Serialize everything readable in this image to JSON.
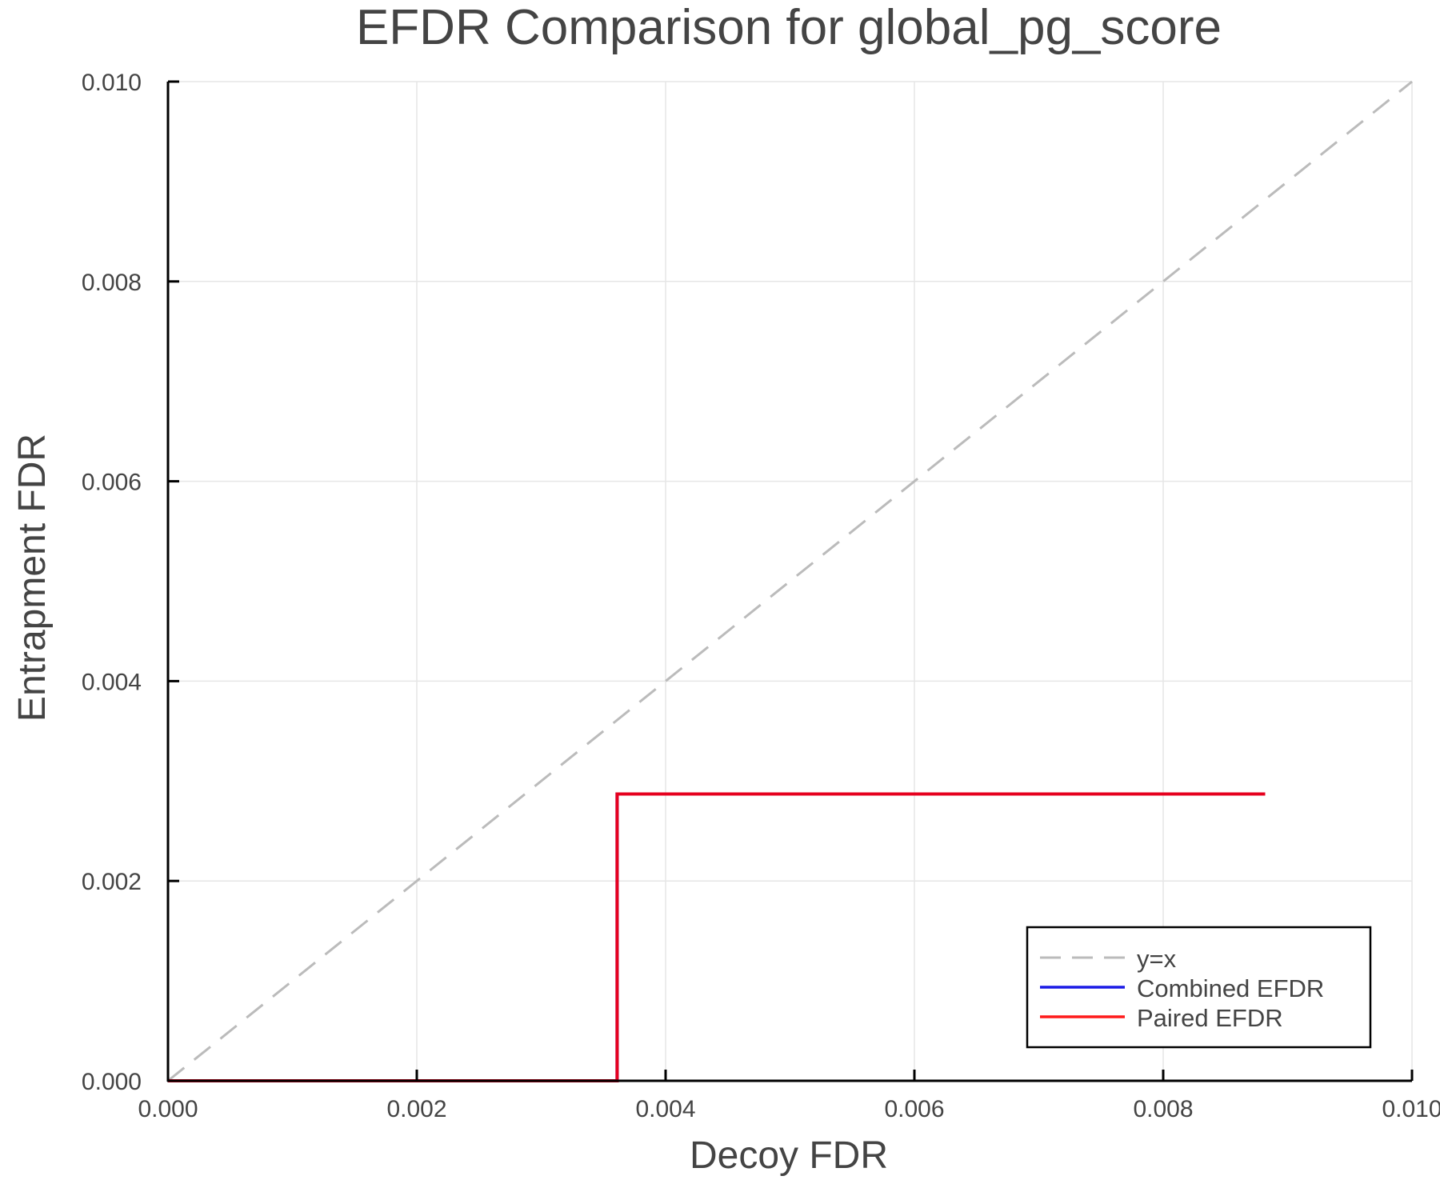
{
  "chart_data": {
    "type": "line",
    "title": "EFDR Comparison for global_pg_score",
    "xlabel": "Decoy FDR",
    "ylabel": "Entrapment FDR",
    "xlim": [
      0.0,
      0.01
    ],
    "ylim": [
      0.0,
      0.01
    ],
    "grid": true,
    "legend_position": "bottom-right",
    "x_ticks": [
      "0.000",
      "0.002",
      "0.004",
      "0.006",
      "0.008",
      "0.010"
    ],
    "y_ticks": [
      "0.000",
      "0.002",
      "0.004",
      "0.006",
      "0.008",
      "0.010"
    ],
    "series": [
      {
        "name": "y=x",
        "style": "dashed",
        "color": "#bbbbbb",
        "x": [
          0.0,
          0.01
        ],
        "y": [
          0.0,
          0.01
        ]
      },
      {
        "name": "Combined EFDR",
        "style": "solid",
        "color": "#1a1ae6",
        "x": [
          0.0,
          0.00361,
          0.00361,
          0.00882
        ],
        "y": [
          0.0,
          0.0,
          0.00287,
          0.00287
        ]
      },
      {
        "name": "Paired EFDR",
        "style": "solid",
        "color": "#e6001e",
        "x": [
          0.0,
          0.00361,
          0.00361,
          0.00882
        ],
        "y": [
          0.0,
          0.0,
          0.00287,
          0.00287
        ]
      }
    ]
  },
  "legend": {
    "items": [
      {
        "label": "y=x",
        "color": "#bbbbbb"
      },
      {
        "label": "Combined EFDR",
        "color": "#1a1ae6"
      },
      {
        "label": "Paired EFDR",
        "color": "#ff1a1a"
      }
    ]
  }
}
